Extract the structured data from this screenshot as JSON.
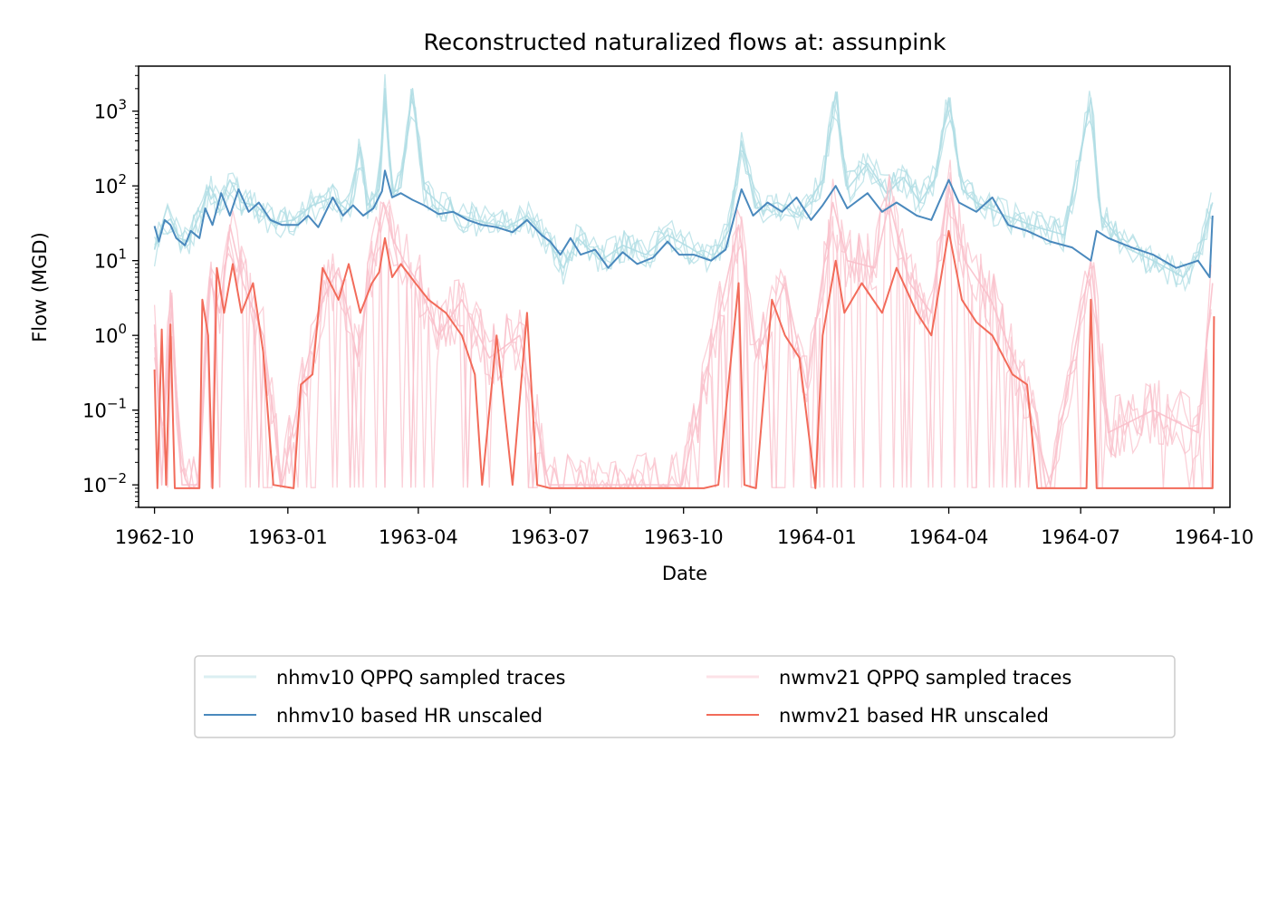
{
  "chart_data": {
    "type": "line",
    "title": "Reconstructed naturalized flows at: assunpink",
    "xlabel": "Date",
    "ylabel": "Flow (MGD)",
    "yscale": "log",
    "ylim": [
      0.005,
      4000
    ],
    "xlim": [
      "1962-09-20",
      "1964-10-12"
    ],
    "grid": false,
    "legend_position": "bottom-center",
    "legend_columns": 2,
    "x_ticks": [
      "1962-10",
      "1963-01",
      "1963-04",
      "1963-07",
      "1963-10",
      "1964-01",
      "1964-04",
      "1964-07",
      "1964-10"
    ],
    "y_ticks": [
      {
        "value": 0.01,
        "base": "10",
        "exp": "−2"
      },
      {
        "value": 0.1,
        "base": "10",
        "exp": "−1"
      },
      {
        "value": 1,
        "base": "10",
        "exp": "0"
      },
      {
        "value": 10,
        "base": "10",
        "exp": "1"
      },
      {
        "value": 100,
        "base": "10",
        "exp": "2"
      },
      {
        "value": 1000,
        "base": "10",
        "exp": "3"
      }
    ],
    "series": [
      {
        "name": "nhmv10 QPPQ sampled traces",
        "color": "#b0dde4",
        "style": "ensemble",
        "points": [
          [
            "1962-10-01",
            14
          ],
          [
            "1962-10-06",
            30
          ],
          [
            "1962-10-12",
            36
          ],
          [
            "1962-10-18",
            20
          ],
          [
            "1962-10-24",
            18
          ],
          [
            "1962-11-01",
            40
          ],
          [
            "1962-11-08",
            100
          ],
          [
            "1962-11-15",
            55
          ],
          [
            "1962-11-22",
            120
          ],
          [
            "1962-11-30",
            60
          ],
          [
            "1962-12-10",
            55
          ],
          [
            "1962-12-22",
            32
          ],
          [
            "1963-01-05",
            35
          ],
          [
            "1963-01-18",
            55
          ],
          [
            "1963-02-01",
            70
          ],
          [
            "1963-02-12",
            45
          ],
          [
            "1963-02-20",
            330
          ],
          [
            "1963-02-25",
            55
          ],
          [
            "1963-03-05",
            90
          ],
          [
            "1963-03-09",
            2000
          ],
          [
            "1963-03-14",
            80
          ],
          [
            "1963-03-20",
            95
          ],
          [
            "1963-03-28",
            2000
          ],
          [
            "1963-04-05",
            90
          ],
          [
            "1963-04-20",
            48
          ],
          [
            "1963-05-10",
            35
          ],
          [
            "1963-06-01",
            28
          ],
          [
            "1963-06-15",
            40
          ],
          [
            "1963-06-30",
            18
          ],
          [
            "1963-07-10",
            8
          ],
          [
            "1963-07-20",
            20
          ],
          [
            "1963-08-05",
            10
          ],
          [
            "1963-08-20",
            16
          ],
          [
            "1963-09-05",
            12
          ],
          [
            "1963-09-20",
            22
          ],
          [
            "1963-10-05",
            15
          ],
          [
            "1963-10-20",
            10
          ],
          [
            "1963-11-01",
            25
          ],
          [
            "1963-11-10",
            400
          ],
          [
            "1963-11-20",
            50
          ],
          [
            "1963-12-05",
            60
          ],
          [
            "1963-12-20",
            40
          ],
          [
            "1964-01-05",
            120
          ],
          [
            "1964-01-14",
            1800
          ],
          [
            "1964-01-22",
            90
          ],
          [
            "1964-02-05",
            200
          ],
          [
            "1964-02-18",
            80
          ],
          [
            "1964-03-01",
            130
          ],
          [
            "1964-03-12",
            60
          ],
          [
            "1964-03-22",
            120
          ],
          [
            "1964-04-01",
            1500
          ],
          [
            "1964-04-10",
            90
          ],
          [
            "1964-04-20",
            60
          ],
          [
            "1964-05-10",
            40
          ],
          [
            "1964-06-01",
            28
          ],
          [
            "1964-06-20",
            22
          ],
          [
            "1964-07-08",
            1500
          ],
          [
            "1964-07-15",
            40
          ],
          [
            "1964-08-01",
            15
          ],
          [
            "1964-08-20",
            10
          ],
          [
            "1964-09-10",
            6
          ],
          [
            "1964-09-20",
            12
          ],
          [
            "1964-09-30",
            60
          ]
        ]
      },
      {
        "name": "nhmv10 based HR unscaled",
        "color": "#4a89bd",
        "style": "main",
        "points": [
          [
            "1962-10-01",
            29
          ],
          [
            "1962-10-04",
            18
          ],
          [
            "1962-10-08",
            35
          ],
          [
            "1962-10-12",
            30
          ],
          [
            "1962-10-16",
            20
          ],
          [
            "1962-10-22",
            16
          ],
          [
            "1962-10-26",
            25
          ],
          [
            "1962-11-01",
            20
          ],
          [
            "1962-11-05",
            50
          ],
          [
            "1962-11-10",
            30
          ],
          [
            "1962-11-16",
            80
          ],
          [
            "1962-11-22",
            40
          ],
          [
            "1962-11-28",
            90
          ],
          [
            "1962-12-05",
            45
          ],
          [
            "1962-12-12",
            60
          ],
          [
            "1962-12-20",
            35
          ],
          [
            "1962-12-28",
            30
          ],
          [
            "1963-01-08",
            30
          ],
          [
            "1963-01-15",
            40
          ],
          [
            "1963-01-22",
            28
          ],
          [
            "1963-02-01",
            70
          ],
          [
            "1963-02-08",
            40
          ],
          [
            "1963-02-15",
            55
          ],
          [
            "1963-02-22",
            40
          ],
          [
            "1963-03-01",
            50
          ],
          [
            "1963-03-07",
            85
          ],
          [
            "1963-03-09",
            160
          ],
          [
            "1963-03-14",
            70
          ],
          [
            "1963-03-20",
            80
          ],
          [
            "1963-03-28",
            65
          ],
          [
            "1963-04-05",
            55
          ],
          [
            "1963-04-15",
            42
          ],
          [
            "1963-04-25",
            45
          ],
          [
            "1963-05-05",
            35
          ],
          [
            "1963-05-15",
            30
          ],
          [
            "1963-05-25",
            28
          ],
          [
            "1963-06-05",
            24
          ],
          [
            "1963-06-15",
            35
          ],
          [
            "1963-06-25",
            22
          ],
          [
            "1963-07-01",
            18
          ],
          [
            "1963-07-08",
            12
          ],
          [
            "1963-07-15",
            20
          ],
          [
            "1963-07-22",
            12
          ],
          [
            "1963-08-01",
            14
          ],
          [
            "1963-08-10",
            8
          ],
          [
            "1963-08-20",
            13
          ],
          [
            "1963-08-30",
            9
          ],
          [
            "1963-09-10",
            11
          ],
          [
            "1963-09-20",
            18
          ],
          [
            "1963-09-28",
            12
          ],
          [
            "1963-10-08",
            12
          ],
          [
            "1963-10-20",
            10
          ],
          [
            "1963-10-30",
            14
          ],
          [
            "1963-11-10",
            90
          ],
          [
            "1963-11-18",
            40
          ],
          [
            "1963-11-28",
            60
          ],
          [
            "1963-12-08",
            45
          ],
          [
            "1963-12-18",
            70
          ],
          [
            "1963-12-28",
            35
          ],
          [
            "1964-01-05",
            55
          ],
          [
            "1964-01-14",
            100
          ],
          [
            "1964-01-22",
            50
          ],
          [
            "1964-02-05",
            80
          ],
          [
            "1964-02-15",
            45
          ],
          [
            "1964-02-25",
            60
          ],
          [
            "1964-03-10",
            40
          ],
          [
            "1964-03-20",
            35
          ],
          [
            "1964-04-01",
            120
          ],
          [
            "1964-04-08",
            60
          ],
          [
            "1964-04-20",
            45
          ],
          [
            "1964-05-01",
            70
          ],
          [
            "1964-05-12",
            30
          ],
          [
            "1964-05-25",
            25
          ],
          [
            "1964-06-10",
            18
          ],
          [
            "1964-06-25",
            15
          ],
          [
            "1964-07-08",
            10
          ],
          [
            "1964-07-12",
            25
          ],
          [
            "1964-07-20",
            20
          ],
          [
            "1964-08-05",
            15
          ],
          [
            "1964-08-20",
            12
          ],
          [
            "1964-09-05",
            8
          ],
          [
            "1964-09-20",
            10
          ],
          [
            "1964-09-28",
            6
          ],
          [
            "1964-09-30",
            40
          ]
        ]
      },
      {
        "name": "nwmv21 QPPQ sampled traces",
        "color": "#f9c0cb",
        "style": "ensemble-spiky",
        "points": [
          [
            "1962-10-01",
            1.4
          ],
          [
            "1962-10-06",
            0.01
          ],
          [
            "1962-10-12",
            4
          ],
          [
            "1962-10-20",
            0.01
          ],
          [
            "1962-11-01",
            0.01
          ],
          [
            "1962-11-08",
            6
          ],
          [
            "1962-11-15",
            2
          ],
          [
            "1962-11-22",
            30
          ],
          [
            "1962-12-01",
            5
          ],
          [
            "1962-12-15",
            1
          ],
          [
            "1962-12-28",
            0.01
          ],
          [
            "1963-01-10",
            0.2
          ],
          [
            "1963-01-25",
            3
          ],
          [
            "1963-02-05",
            8
          ],
          [
            "1963-02-18",
            0.5
          ],
          [
            "1963-02-28",
            8
          ],
          [
            "1963-03-08",
            60
          ],
          [
            "1963-03-14",
            20
          ],
          [
            "1963-03-22",
            10
          ],
          [
            "1963-04-01",
            5
          ],
          [
            "1963-04-15",
            1
          ],
          [
            "1963-05-01",
            3
          ],
          [
            "1963-05-20",
            0.5
          ],
          [
            "1963-06-10",
            1
          ],
          [
            "1963-06-30",
            0.01
          ],
          [
            "1963-09-30",
            0.01
          ],
          [
            "1963-11-08",
            30
          ],
          [
            "1963-11-20",
            0.5
          ],
          [
            "1963-12-10",
            5
          ],
          [
            "1963-12-25",
            0.2
          ],
          [
            "1964-01-12",
            60
          ],
          [
            "1964-01-22",
            10
          ],
          [
            "1964-02-10",
            8
          ],
          [
            "1964-02-20",
            60
          ],
          [
            "1964-03-05",
            5
          ],
          [
            "1964-03-20",
            2
          ],
          [
            "1964-04-01",
            100
          ],
          [
            "1964-04-12",
            10
          ],
          [
            "1964-04-30",
            3
          ],
          [
            "1964-05-20",
            0.3
          ],
          [
            "1964-06-10",
            0.01
          ],
          [
            "1964-07-08",
            10
          ],
          [
            "1964-07-20",
            0.05
          ],
          [
            "1964-08-20",
            0.1
          ],
          [
            "1964-09-20",
            0.05
          ],
          [
            "1964-09-30",
            5
          ]
        ]
      },
      {
        "name": "nwmv21 based HR unscaled",
        "color": "#f26b5a",
        "style": "main-spiky",
        "points": [
          [
            "1962-10-01",
            0.35
          ],
          [
            "1962-10-03",
            0.009
          ],
          [
            "1962-10-06",
            1.2
          ],
          [
            "1962-10-09",
            0.01
          ],
          [
            "1962-10-12",
            1.4
          ],
          [
            "1962-10-15",
            0.009
          ],
          [
            "1962-11-01",
            0.009
          ],
          [
            "1962-11-03",
            3
          ],
          [
            "1962-11-07",
            1
          ],
          [
            "1962-11-10",
            0.009
          ],
          [
            "1962-11-13",
            8
          ],
          [
            "1962-11-18",
            2
          ],
          [
            "1962-11-24",
            9
          ],
          [
            "1962-11-30",
            2
          ],
          [
            "1962-12-08",
            5
          ],
          [
            "1962-12-15",
            0.6
          ],
          [
            "1962-12-22",
            0.01
          ],
          [
            "1963-01-05",
            0.009
          ],
          [
            "1963-01-10",
            0.22
          ],
          [
            "1963-01-18",
            0.3
          ],
          [
            "1963-01-25",
            8
          ],
          [
            "1963-02-05",
            3
          ],
          [
            "1963-02-12",
            9
          ],
          [
            "1963-02-20",
            2
          ],
          [
            "1963-02-28",
            5
          ],
          [
            "1963-03-05",
            7
          ],
          [
            "1963-03-09",
            20
          ],
          [
            "1963-03-14",
            6
          ],
          [
            "1963-03-20",
            9
          ],
          [
            "1963-03-30",
            5
          ],
          [
            "1963-04-08",
            3
          ],
          [
            "1963-04-20",
            2
          ],
          [
            "1963-05-01",
            1
          ],
          [
            "1963-05-10",
            0.3
          ],
          [
            "1963-05-15",
            0.01
          ],
          [
            "1963-05-25",
            1
          ],
          [
            "1963-06-05",
            0.01
          ],
          [
            "1963-06-15",
            2
          ],
          [
            "1963-06-22",
            0.01
          ],
          [
            "1963-07-01",
            0.009
          ],
          [
            "1963-10-15",
            0.009
          ],
          [
            "1963-10-25",
            0.01
          ],
          [
            "1963-11-08",
            5
          ],
          [
            "1963-11-12",
            0.01
          ],
          [
            "1963-11-20",
            0.009
          ],
          [
            "1963-12-01",
            3
          ],
          [
            "1963-12-10",
            1
          ],
          [
            "1963-12-20",
            0.5
          ],
          [
            "1963-12-31",
            0.009
          ],
          [
            "1964-01-05",
            1
          ],
          [
            "1964-01-14",
            10
          ],
          [
            "1964-01-20",
            2
          ],
          [
            "1964-02-01",
            5
          ],
          [
            "1964-02-15",
            2
          ],
          [
            "1964-02-25",
            8
          ],
          [
            "1964-03-10",
            2
          ],
          [
            "1964-03-20",
            1
          ],
          [
            "1964-04-01",
            25
          ],
          [
            "1964-04-10",
            3
          ],
          [
            "1964-04-20",
            1.5
          ],
          [
            "1964-05-01",
            1
          ],
          [
            "1964-05-15",
            0.3
          ],
          [
            "1964-05-25",
            0.22
          ],
          [
            "1964-06-01",
            0.009
          ],
          [
            "1964-07-05",
            0.009
          ],
          [
            "1964-07-08",
            3
          ],
          [
            "1964-07-12",
            0.009
          ],
          [
            "1964-09-30",
            0.009
          ],
          [
            "1964-10-01",
            1.8
          ]
        ]
      }
    ]
  }
}
